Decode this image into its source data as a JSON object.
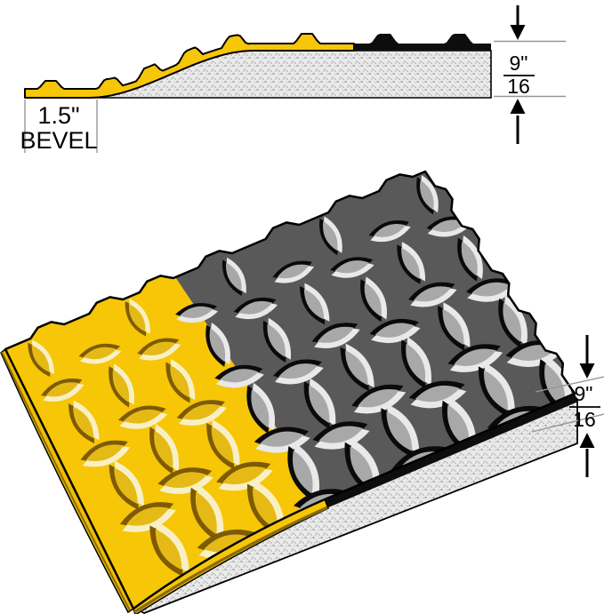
{
  "side_view": {
    "bevel_width": "1.5\"",
    "bevel_label": "BEVEL",
    "thickness_numerator": "9\"",
    "thickness_denominator": "16"
  },
  "perspective_view": {
    "thickness_numerator": "9\"",
    "thickness_denominator": "16"
  },
  "colors": {
    "safety_yellow": "#F6C607",
    "plate_gray": "#595959",
    "edge_black": "#0D0D0D",
    "foam_base": "#E9E9E9",
    "outline": "#000000",
    "dim_line_gray": "#969696"
  }
}
